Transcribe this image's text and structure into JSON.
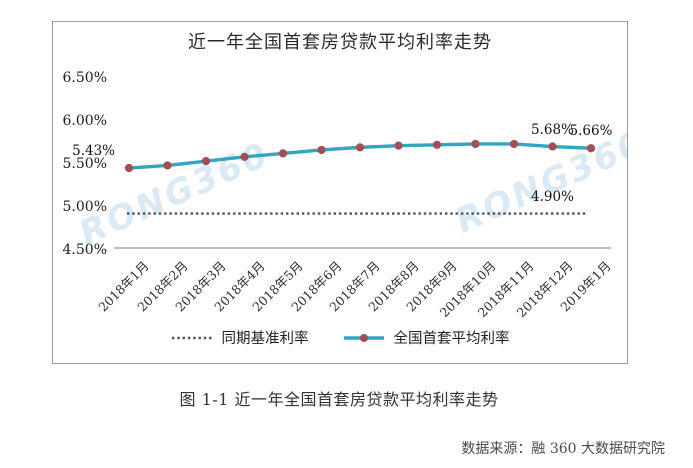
{
  "page": {
    "caption": "图 1-1 近一年全国首套房贷款平均利率走势",
    "source": "数据来源：融 360 大数据研究院"
  },
  "watermark": {
    "text": "RONG360",
    "color": "#d5e7f5"
  },
  "chart_data": {
    "type": "line",
    "title": "近一年全国首套房贷款平均利率走势",
    "categories": [
      "2018年1月",
      "2018年2月",
      "2018年3月",
      "2018年4月",
      "2018年5月",
      "2018年6月",
      "2018年7月",
      "2018年8月",
      "2018年9月",
      "2018年10月",
      "2018年11月",
      "2018年12月",
      "2019年1月"
    ],
    "series": [
      {
        "name": "同期基准利率",
        "style": "dotted",
        "color": "#4a5260",
        "values": [
          4.9,
          4.9,
          4.9,
          4.9,
          4.9,
          4.9,
          4.9,
          4.9,
          4.9,
          4.9,
          4.9,
          4.9,
          4.9
        ]
      },
      {
        "name": "全国首套平均利率",
        "style": "solid-with-markers",
        "color": "#33a5c3",
        "marker_color": "#a64d52",
        "values": [
          5.43,
          5.46,
          5.51,
          5.56,
          5.6,
          5.64,
          5.67,
          5.69,
          5.7,
          5.71,
          5.71,
          5.68,
          5.66
        ]
      }
    ],
    "y_ticks": [
      "6.50%",
      "6.00%",
      "5.50%",
      "5.00%",
      "4.50%"
    ],
    "ylim": [
      4.5,
      6.75
    ],
    "grid": false,
    "legend_position": "bottom",
    "annotations": [
      {
        "text": "5.43%",
        "anchor_index": 0,
        "placement": "above-left"
      },
      {
        "text": "5.68%",
        "anchor_index": 11,
        "placement": "above"
      },
      {
        "text": "5.66%",
        "anchor_index": 12,
        "placement": "above"
      },
      {
        "text": "4.90%",
        "anchor_index": 11,
        "value": 4.9,
        "placement": "above"
      }
    ]
  }
}
